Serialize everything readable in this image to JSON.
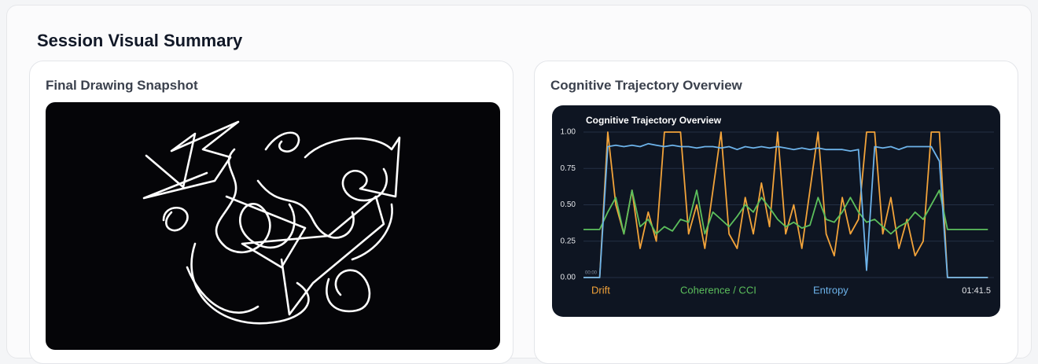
{
  "header": {
    "title": "Session Visual Summary"
  },
  "panels": [
    {
      "title": "Final Drawing Snapshot"
    },
    {
      "title": "Cognitive Trajectory Overview"
    }
  ],
  "chart_data": {
    "type": "line",
    "title": "Cognitive Trajectory Overview",
    "x": [
      0,
      2,
      4,
      6,
      8,
      10,
      12,
      14,
      16,
      18,
      20,
      22,
      24,
      26,
      28,
      30,
      32,
      34,
      36,
      38,
      40,
      42,
      44,
      46,
      48,
      50,
      52,
      54,
      56,
      58,
      60,
      62,
      64,
      66,
      68,
      70,
      72,
      74,
      76,
      78,
      80,
      82,
      84,
      86,
      88,
      90,
      92,
      94,
      96,
      98,
      100
    ],
    "xlim": [
      0,
      101.5
    ],
    "xticks": [
      {
        "value": 0,
        "label": "00:00"
      },
      {
        "value": 101.5,
        "label": "01:41.5"
      }
    ],
    "ylim": [
      0,
      1
    ],
    "yticks": [
      {
        "value": 0,
        "label": "0.00"
      },
      {
        "value": 0.25,
        "label": "0.25"
      },
      {
        "value": 0.5,
        "label": "0.50"
      },
      {
        "value": 0.75,
        "label": "0.75"
      },
      {
        "value": 1,
        "label": "1.00"
      }
    ],
    "grid": true,
    "series": [
      {
        "name": "Drift",
        "color": "#f2a33a",
        "values": [
          0,
          0,
          0,
          1,
          0.5,
          0.3,
          0.6,
          0.2,
          0.45,
          0.25,
          1,
          1,
          1,
          0.3,
          0.5,
          0.2,
          0.6,
          1,
          0.3,
          0.2,
          0.55,
          0.3,
          0.65,
          0.35,
          1,
          0.3,
          0.5,
          0.2,
          0.6,
          1,
          0.3,
          0.15,
          0.55,
          0.3,
          0.4,
          1,
          1,
          0.3,
          0.55,
          0.2,
          0.4,
          0.15,
          0.25,
          1,
          1,
          0,
          0,
          0,
          0,
          0,
          0
        ]
      },
      {
        "name": "Coherence / CCI",
        "color": "#5cbf5c",
        "values": [
          0.33,
          0.33,
          0.33,
          0.45,
          0.55,
          0.3,
          0.6,
          0.35,
          0.4,
          0.3,
          0.35,
          0.32,
          0.4,
          0.38,
          0.6,
          0.3,
          0.45,
          0.4,
          0.35,
          0.42,
          0.5,
          0.45,
          0.55,
          0.48,
          0.4,
          0.35,
          0.38,
          0.34,
          0.36,
          0.55,
          0.4,
          0.38,
          0.45,
          0.55,
          0.45,
          0.38,
          0.4,
          0.35,
          0.3,
          0.35,
          0.38,
          0.45,
          0.4,
          0.5,
          0.6,
          0.33,
          0.33,
          0.33,
          0.33,
          0.33,
          0.33
        ]
      },
      {
        "name": "Entropy",
        "color": "#6db3ea",
        "values": [
          0,
          0,
          0,
          0.9,
          0.91,
          0.9,
          0.91,
          0.9,
          0.92,
          0.91,
          0.9,
          0.91,
          0.9,
          0.9,
          0.89,
          0.9,
          0.9,
          0.89,
          0.9,
          0.88,
          0.9,
          0.89,
          0.9,
          0.89,
          0.9,
          0.89,
          0.88,
          0.89,
          0.88,
          0.89,
          0.88,
          0.88,
          0.88,
          0.87,
          0.88,
          0.05,
          0.9,
          0.89,
          0.9,
          0.88,
          0.9,
          0.9,
          0.9,
          0.9,
          0.8,
          0,
          0,
          0,
          0,
          0,
          0
        ]
      }
    ]
  }
}
